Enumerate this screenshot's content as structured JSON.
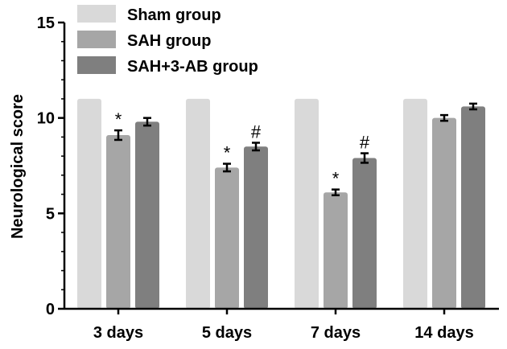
{
  "chart_data": {
    "type": "bar",
    "ylabel": "Neurological score",
    "xlabel": "",
    "ylim": [
      0,
      15
    ],
    "yticks": [
      0,
      5,
      10,
      15
    ],
    "categories": [
      "3 days",
      "5 days",
      "7 days",
      "14 days"
    ],
    "series": [
      {
        "name": "Sham group",
        "color": "#d9d9d9",
        "values": [
          11.0,
          11.0,
          11.0,
          11.0
        ],
        "errors": [
          0,
          0,
          0,
          0
        ],
        "markers": [
          "",
          "",
          "",
          ""
        ]
      },
      {
        "name": "SAH group",
        "color": "#a6a6a6",
        "values": [
          9.1,
          7.4,
          6.1,
          10.0
        ],
        "errors": [
          0.25,
          0.2,
          0.15,
          0.15
        ],
        "markers": [
          "*",
          "*",
          "*",
          ""
        ]
      },
      {
        "name": "SAH+3-AB group",
        "color": "#7f7f7f",
        "values": [
          9.8,
          8.5,
          7.9,
          10.6
        ],
        "errors": [
          0.2,
          0.2,
          0.25,
          0.15
        ],
        "markers": [
          "",
          "#",
          "#",
          ""
        ]
      }
    ],
    "legend_position": "top-left",
    "grid": false
  }
}
